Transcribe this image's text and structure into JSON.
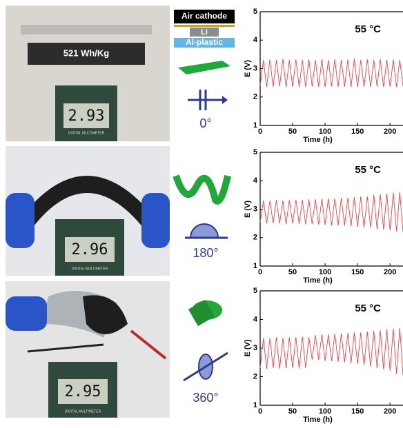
{
  "layers": [
    "Air cathode",
    "Li",
    "Al-plastic"
  ],
  "photos": [
    {
      "label": "521 Wh/Kg",
      "reading": "2.93",
      "meter": "DIGITAL MULTIMETER"
    },
    {
      "reading": "2.96",
      "meter": "DIGITAL MULTIMETER"
    },
    {
      "reading": "2.95",
      "meter": "DIGITAL MULTIMETER"
    }
  ],
  "angles": [
    "0°",
    "180°",
    "360°"
  ],
  "chart_data": [
    {
      "type": "line",
      "annotation": "55 °C",
      "xlabel": "Time (h)",
      "ylabel": "E (V)",
      "color": "#e8454a",
      "xlim": [
        0,
        220
      ],
      "ylim": [
        1,
        5
      ],
      "xticks": [
        0,
        50,
        100,
        150,
        200
      ],
      "yticks": [
        1,
        2,
        3,
        4,
        5
      ],
      "x": [
        0,
        5,
        10,
        15,
        20,
        25,
        30,
        35,
        40,
        45,
        50,
        55,
        60,
        65,
        70,
        75,
        80,
        85,
        90,
        95,
        100,
        105,
        110,
        115,
        120,
        125,
        130,
        135,
        140,
        145,
        150,
        155,
        160,
        165,
        170,
        175,
        180,
        185,
        190,
        195,
        200,
        205,
        210,
        215,
        220
      ],
      "values": [
        2.4,
        3.3,
        2.35,
        3.32,
        2.35,
        3.3,
        2.38,
        3.35,
        2.35,
        3.3,
        2.36,
        3.32,
        2.35,
        3.3,
        2.35,
        3.33,
        2.37,
        3.3,
        2.35,
        3.32,
        2.35,
        3.3,
        2.38,
        3.33,
        2.35,
        3.3,
        2.36,
        3.32,
        2.35,
        3.35,
        2.35,
        3.3,
        2.36,
        3.32,
        2.35,
        3.3,
        2.37,
        3.33,
        2.35,
        3.3,
        2.36,
        3.32,
        2.35,
        3.3,
        2.38
      ]
    },
    {
      "type": "line",
      "annotation": "55 °C",
      "xlabel": "Time (h)",
      "ylabel": "E (V)",
      "color": "#e8454a",
      "xlim": [
        0,
        220
      ],
      "ylim": [
        1,
        5
      ],
      "xticks": [
        0,
        50,
        100,
        150,
        200
      ],
      "yticks": [
        1,
        2,
        3,
        4,
        5
      ],
      "x": [
        0,
        5,
        10,
        15,
        20,
        25,
        30,
        35,
        40,
        45,
        50,
        55,
        60,
        65,
        70,
        75,
        80,
        85,
        90,
        95,
        100,
        105,
        110,
        115,
        120,
        125,
        130,
        135,
        140,
        145,
        150,
        155,
        160,
        165,
        170,
        175,
        180,
        185,
        190,
        195,
        200,
        205,
        210,
        215,
        220
      ],
      "values": [
        2.55,
        3.3,
        2.5,
        3.3,
        2.5,
        3.32,
        2.5,
        3.3,
        2.48,
        3.32,
        2.5,
        3.33,
        2.48,
        3.32,
        2.47,
        3.35,
        2.48,
        3.35,
        2.45,
        3.36,
        2.45,
        3.38,
        2.43,
        3.38,
        2.42,
        3.4,
        2.42,
        3.4,
        2.4,
        3.42,
        2.38,
        3.45,
        2.35,
        3.45,
        2.35,
        3.5,
        2.3,
        3.52,
        2.28,
        3.55,
        2.25,
        3.58,
        2.22,
        3.6,
        2.2
      ]
    },
    {
      "type": "line",
      "annotation": "55 °C",
      "xlabel": "Time (h)",
      "ylabel": "E (V)",
      "color": "#e8454a",
      "xlim": [
        0,
        220
      ],
      "ylim": [
        1,
        5
      ],
      "xticks": [
        0,
        50,
        100,
        150,
        200
      ],
      "yticks": [
        1,
        2,
        3,
        4,
        5
      ],
      "x": [
        0,
        5,
        10,
        15,
        20,
        25,
        30,
        35,
        40,
        45,
        50,
        55,
        60,
        65,
        70,
        75,
        80,
        85,
        90,
        95,
        100,
        105,
        110,
        115,
        120,
        125,
        130,
        135,
        140,
        145,
        150,
        155,
        160,
        165,
        170,
        175,
        180,
        185,
        190,
        195,
        200,
        205,
        210,
        215,
        220
      ],
      "values": [
        2.3,
        3.35,
        2.28,
        3.35,
        2.3,
        3.38,
        2.28,
        3.35,
        2.3,
        3.38,
        2.3,
        3.38,
        2.28,
        3.4,
        2.3,
        3.38,
        2.6,
        3.45,
        2.58,
        3.48,
        2.55,
        3.48,
        2.55,
        3.5,
        2.52,
        3.5,
        2.5,
        3.52,
        2.48,
        3.55,
        2.45,
        3.55,
        2.4,
        3.58,
        2.35,
        3.6,
        2.3,
        3.62,
        2.25,
        3.65,
        2.2,
        3.68,
        2.1,
        3.7,
        2.05
      ]
    }
  ]
}
